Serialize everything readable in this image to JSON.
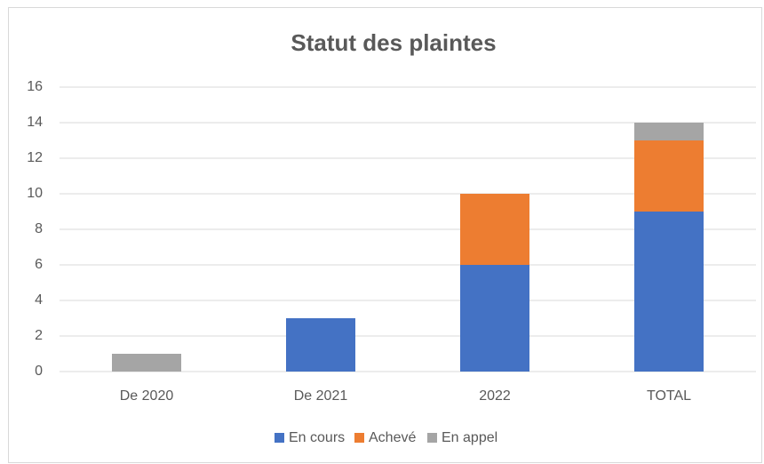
{
  "chart_data": {
    "type": "bar",
    "stacked": true,
    "title": "Statut des plaintes",
    "categories": [
      "De 2020",
      "De 2021",
      "2022",
      "TOTAL"
    ],
    "series": [
      {
        "name": "En cours",
        "color": "#4472c4",
        "values": [
          0,
          3,
          6,
          9
        ]
      },
      {
        "name": "Achevé",
        "color": "#ed7d31",
        "values": [
          0,
          0,
          4,
          4
        ]
      },
      {
        "name": "En appel",
        "color": "#a5a5a5",
        "values": [
          1,
          0,
          0,
          1
        ]
      }
    ],
    "ylim": [
      0,
      16
    ],
    "yticks": [
      0,
      2,
      4,
      6,
      8,
      10,
      12,
      14,
      16
    ],
    "grid": true,
    "legend": "bottom"
  }
}
